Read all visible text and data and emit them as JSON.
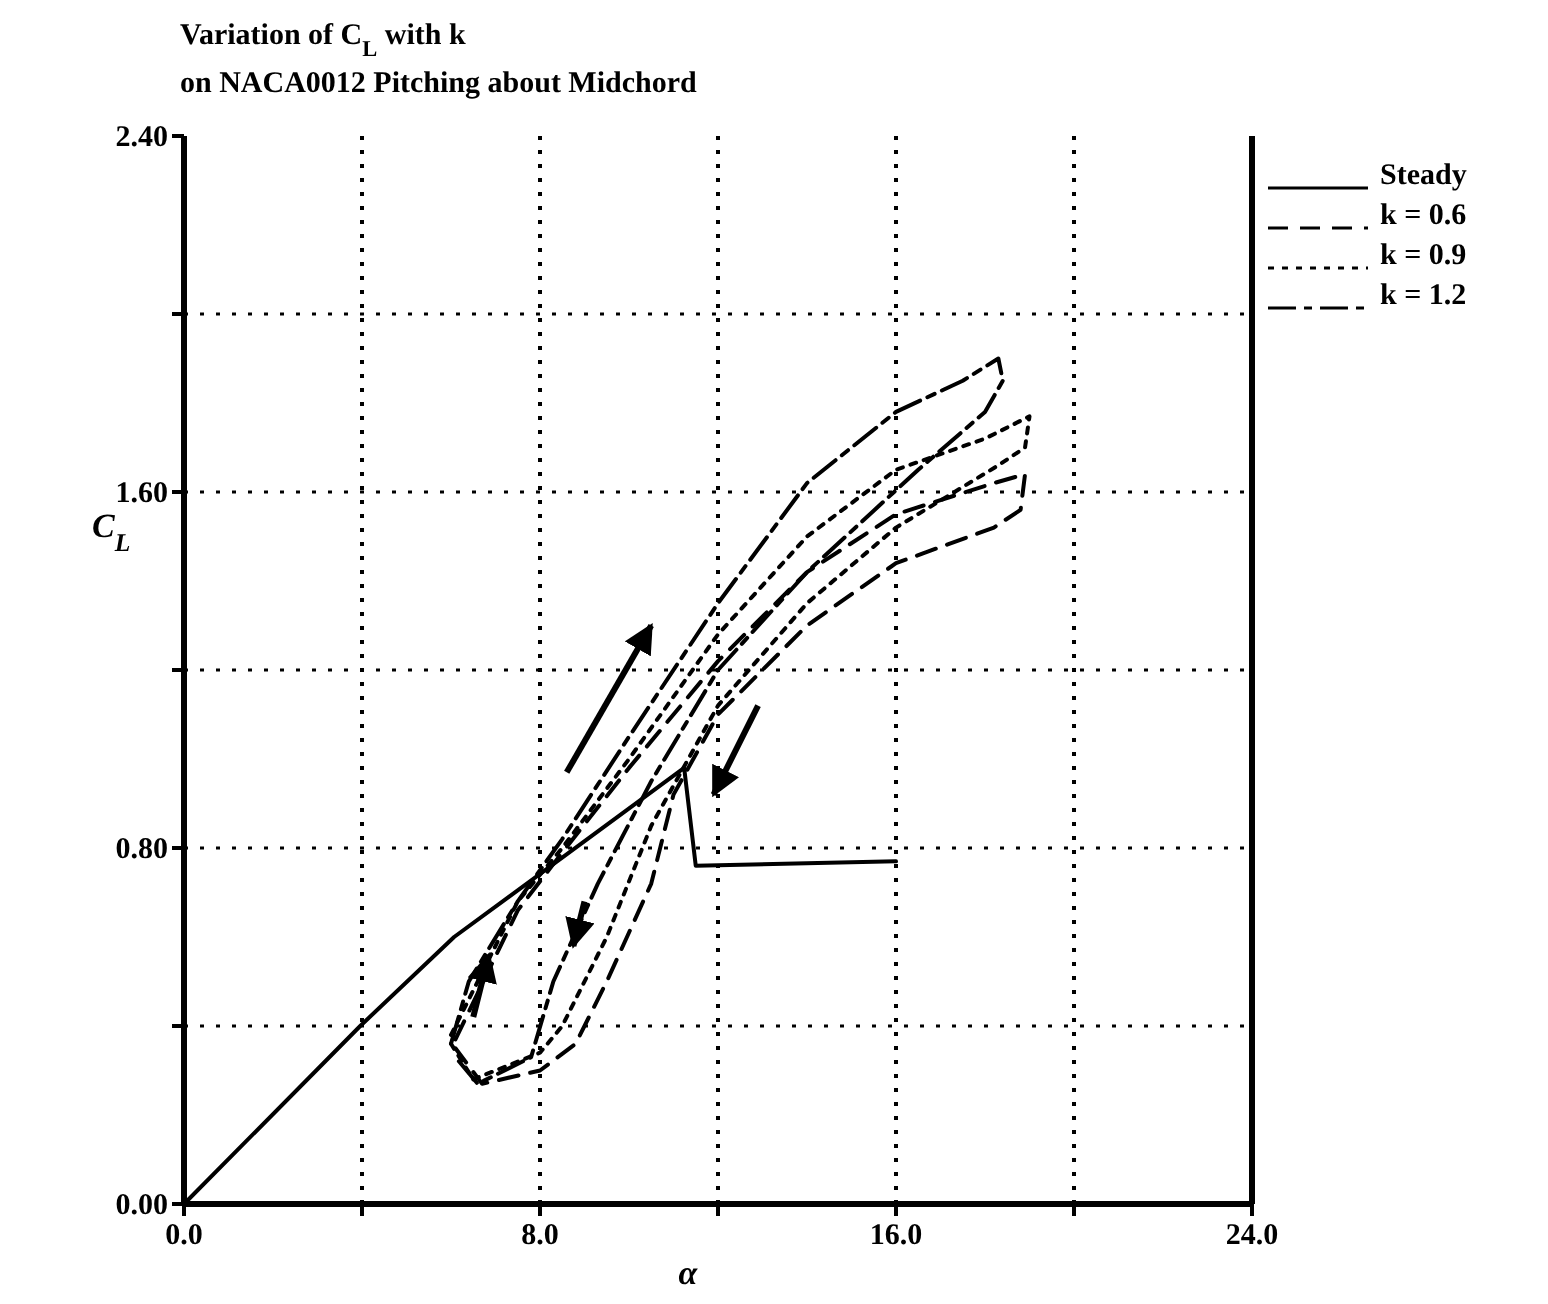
{
  "chart_data": {
    "type": "line",
    "title": "Variation of C$_{L}$ with k",
    "subtitle": "on NACA0012 Pitching about Midchord",
    "xlabel": "α",
    "ylabel": "C$_{L}$",
    "xlim": [
      0,
      24
    ],
    "xticks": [
      {
        "value": 0,
        "label": "0.0"
      },
      {
        "value": 4,
        "label": null
      },
      {
        "value": 8,
        "label": "8.0"
      },
      {
        "value": 12,
        "label": null
      },
      {
        "value": 16,
        "label": "16.0"
      },
      {
        "value": 20,
        "label": null
      },
      {
        "value": 24,
        "label": "24.0"
      }
    ],
    "ylim": [
      0,
      2.4
    ],
    "yticks": [
      {
        "value": 0,
        "label": "0.00"
      },
      {
        "value": 0.4,
        "label": null
      },
      {
        "value": 0.8,
        "label": "0.80"
      },
      {
        "value": 1.2,
        "label": null
      },
      {
        "value": 1.6,
        "label": "1.60"
      },
      {
        "value": 2.0,
        "label": null
      },
      {
        "value": 2.4,
        "label": "2.40"
      }
    ],
    "grid": true,
    "legend": "right",
    "marker": "none",
    "series": [
      {
        "name": "Steady",
        "color": "#000000",
        "line_style": "solid",
        "x": [
          0,
          3.96,
          6.07,
          11.24,
          11.5,
          16.0
        ],
        "values": [
          0,
          0.4,
          0.6,
          0.98,
          0.76,
          0.77
        ]
      },
      {
        "name": "k = 0.6",
        "color": "#000000",
        "line_style": "dashed",
        "x": [
          6.1,
          7.5,
          8.5,
          10,
          12,
          14,
          16,
          18.2,
          18.9,
          18.8,
          18.2,
          16,
          14,
          12,
          11,
          10.5,
          9.5,
          8.8,
          8,
          6.7,
          6.1
        ],
        "values": [
          0.37,
          0.66,
          0.79,
          0.98,
          1.22,
          1.42,
          1.55,
          1.62,
          1.64,
          1.56,
          1.52,
          1.44,
          1.3,
          1.1,
          0.92,
          0.72,
          0.5,
          0.36,
          0.3,
          0.27,
          0.35
        ]
      },
      {
        "name": "k = 0.9",
        "color": "#000000",
        "line_style": "dotted",
        "x": [
          6,
          7.5,
          8.5,
          10,
          12,
          14,
          16,
          18,
          19,
          18.9,
          18.3,
          16,
          14,
          12,
          10.5,
          9.5,
          8.5,
          8,
          6.5,
          6
        ],
        "values": [
          0.38,
          0.68,
          0.8,
          1,
          1.28,
          1.5,
          1.65,
          1.72,
          1.77,
          1.7,
          1.66,
          1.52,
          1.35,
          1.12,
          0.85,
          0.6,
          0.4,
          0.34,
          0.28,
          0.36
        ]
      },
      {
        "name": "k = 1.2",
        "color": "#000000",
        "line_style": "dashdot",
        "x": [
          6,
          6.4,
          7.5,
          8.5,
          10,
          12,
          14,
          16,
          17.5,
          18.3,
          18.4,
          18,
          16.5,
          14,
          12,
          10.5,
          9.3,
          8.3,
          7.8,
          6.6,
          6.1
        ],
        "values": [
          0.36,
          0.5,
          0.68,
          0.82,
          1.05,
          1.35,
          1.62,
          1.78,
          1.85,
          1.9,
          1.85,
          1.78,
          1.65,
          1.42,
          1.2,
          0.95,
          0.72,
          0.5,
          0.33,
          0.27,
          0.33
        ]
      }
    ]
  }
}
